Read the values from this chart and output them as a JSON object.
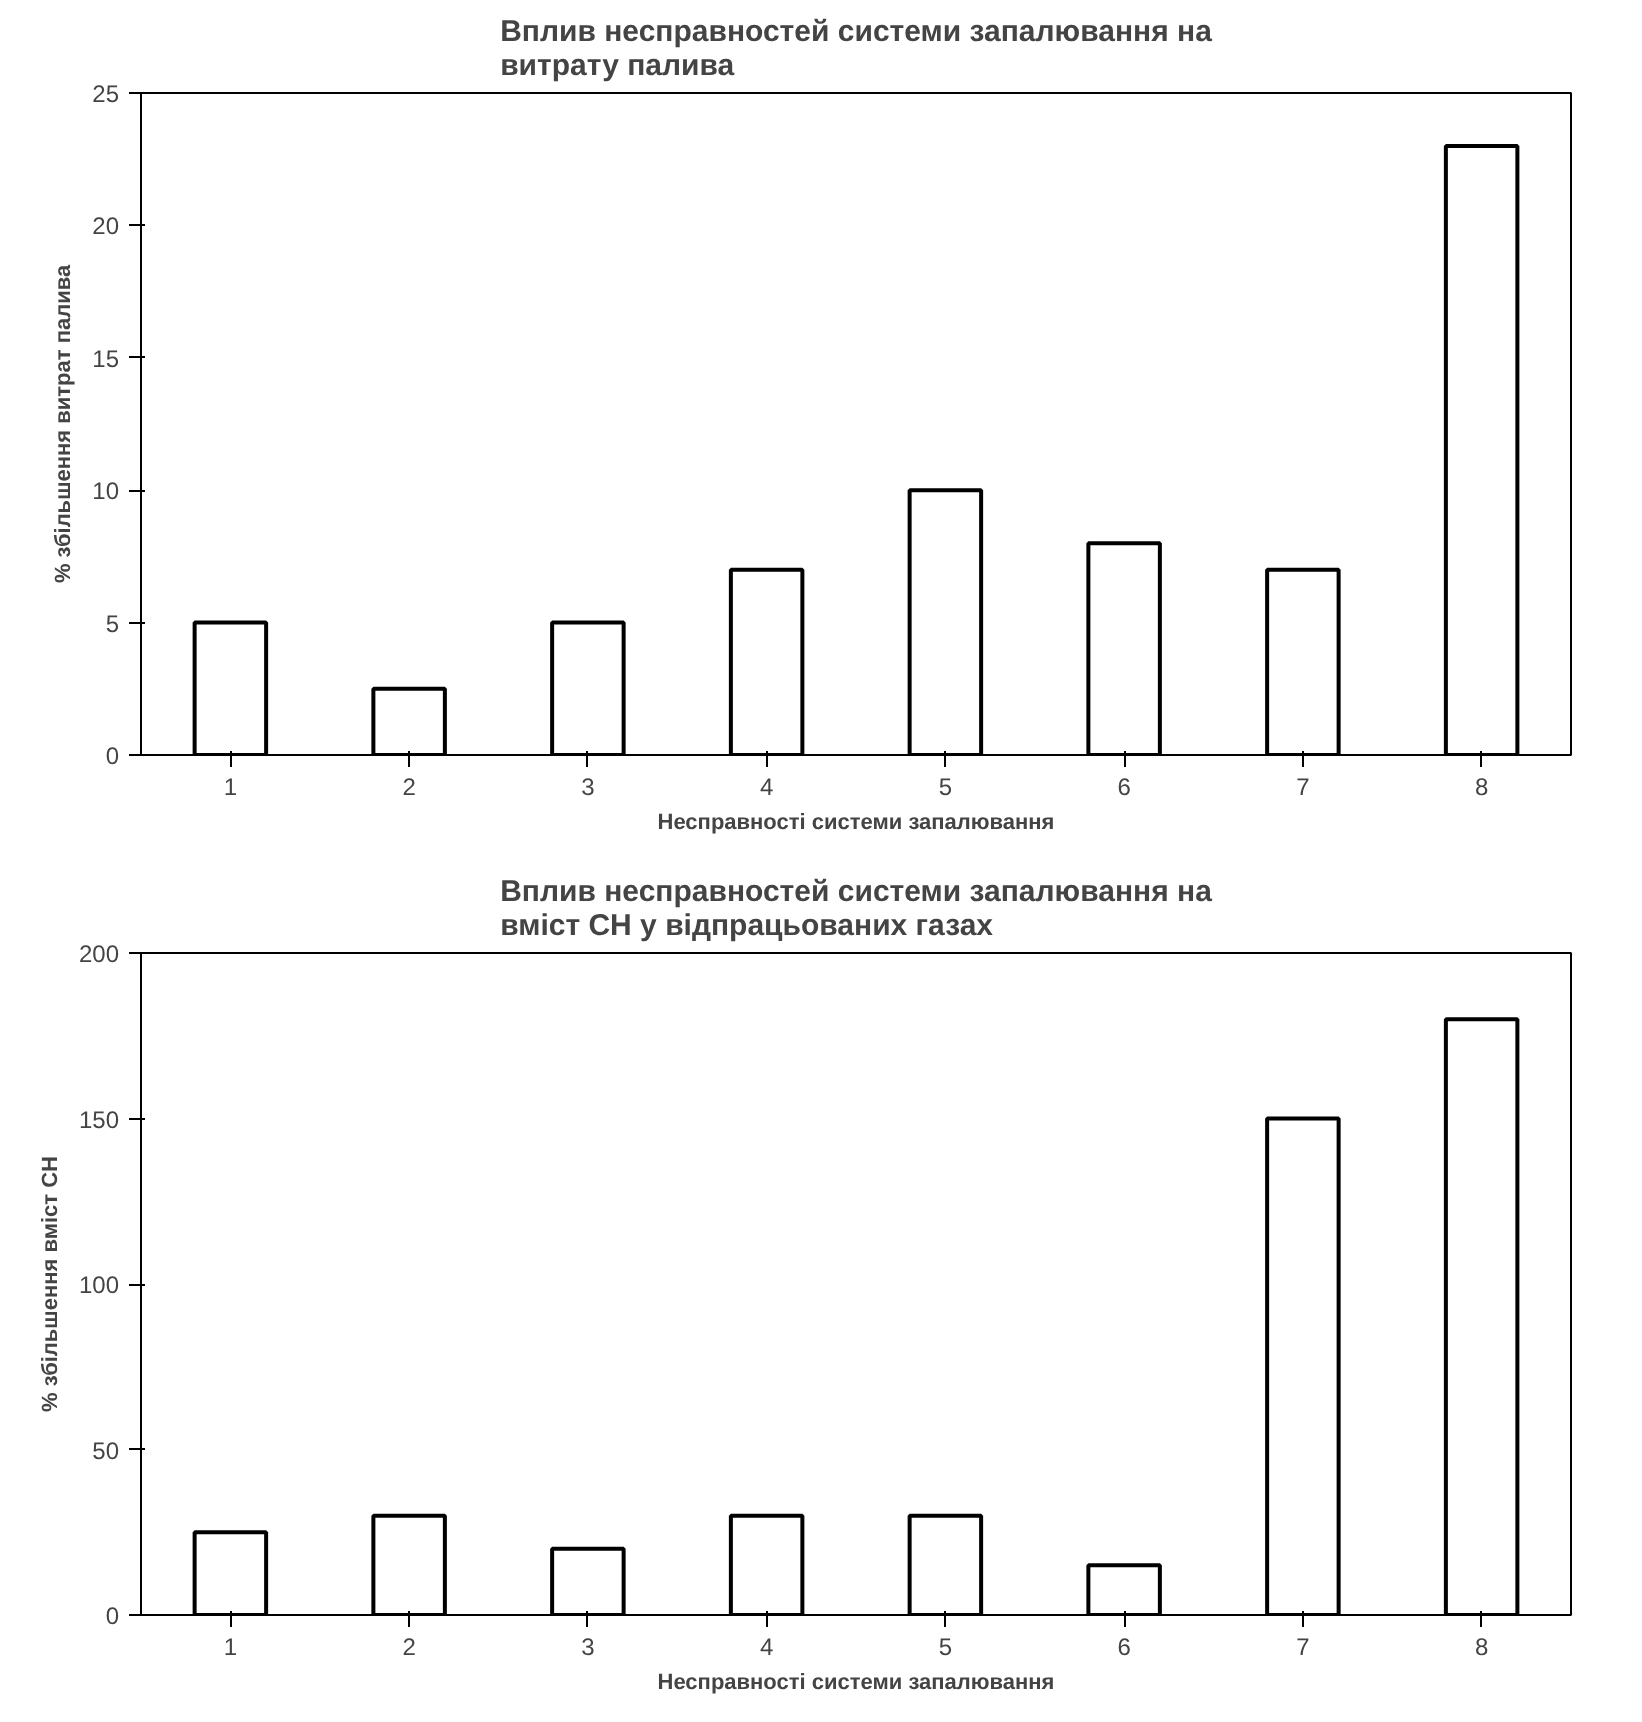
{
  "chart_data": [
    {
      "type": "bar",
      "title": "Вплив несправностей системи запалювання на витрату палива",
      "xlabel": "Несправності системи запалювання",
      "ylabel": "% збільшення витрат палива",
      "categories": [
        "1",
        "2",
        "3",
        "4",
        "5",
        "6",
        "7",
        "8"
      ],
      "values": [
        5,
        2.5,
        5,
        7,
        10,
        8,
        7,
        23
      ],
      "color": "#ffffff",
      "ylim": [
        0,
        25
      ],
      "yticks": [
        0,
        5,
        10,
        15,
        20,
        25
      ],
      "grid": false
    },
    {
      "type": "bar",
      "title": "Вплив несправностей системи запалювання на вміст СН у відпрацьованих газах",
      "xlabel": "Несправності системи запалювання",
      "ylabel": "% збільшення вміст СН",
      "categories": [
        "1",
        "2",
        "3",
        "4",
        "5",
        "6",
        "7",
        "8"
      ],
      "values": [
        25,
        30,
        20,
        30,
        30,
        15,
        150,
        180
      ],
      "color": "#ffffff",
      "ylim": [
        0,
        200
      ],
      "yticks": [
        0,
        50,
        100,
        150,
        200
      ],
      "grid": false
    }
  ]
}
